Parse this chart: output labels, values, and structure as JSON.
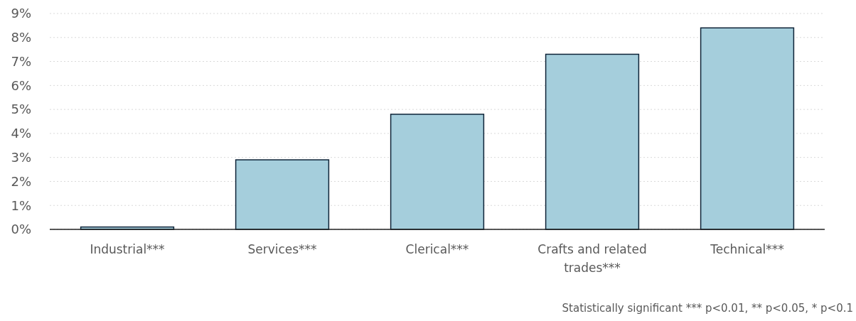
{
  "chart_data": {
    "type": "bar",
    "categories": [
      "Industrial***",
      "Services***",
      "Clerical***",
      "Crafts and related trades***",
      "Technical***"
    ],
    "values": [
      0.1,
      2.9,
      4.8,
      7.3,
      8.4
    ],
    "color": "#a5cedc",
    "ylim": [
      0,
      9
    ],
    "yticks": [
      {
        "value": 0,
        "label": "0%"
      },
      {
        "value": 1,
        "label": "1%"
      },
      {
        "value": 2,
        "label": "2%"
      },
      {
        "value": 3,
        "label": "3%"
      },
      {
        "value": 4,
        "label": "4%"
      },
      {
        "value": 5,
        "label": "5%"
      },
      {
        "value": 6,
        "label": "6%"
      },
      {
        "value": 7,
        "label": "7%"
      },
      {
        "value": 8,
        "label": "8%"
      },
      {
        "value": 9,
        "label": "9%"
      }
    ],
    "grid": "y",
    "annotations": [
      "Statistically significant *** p<0.01, ** p<0.05, * p<0.1"
    ]
  }
}
